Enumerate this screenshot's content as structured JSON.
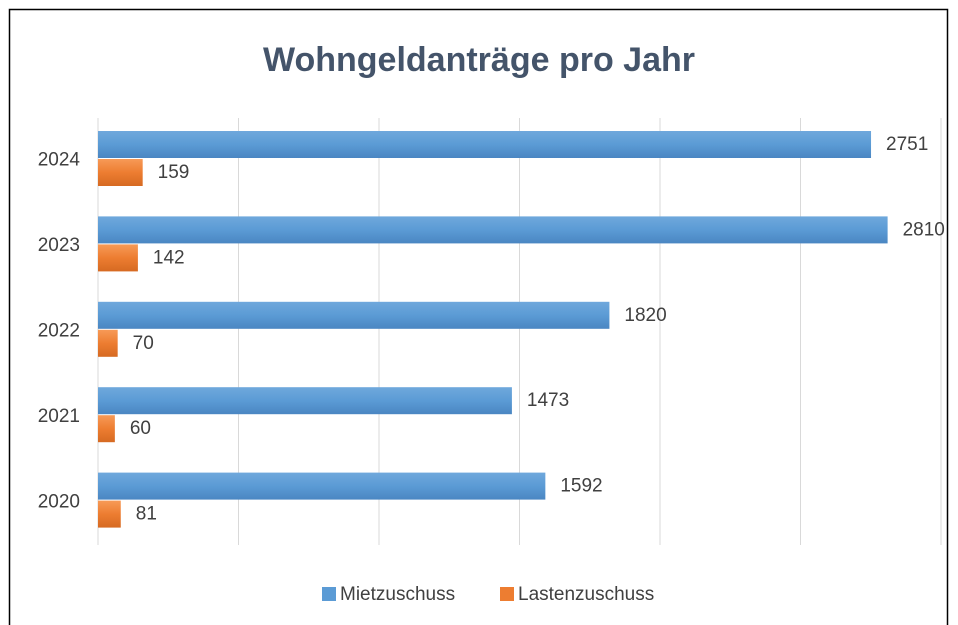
{
  "chart_data": {
    "type": "bar",
    "orientation": "horizontal",
    "title": "Wohngeldanträge pro Jahr",
    "categories": [
      "2024",
      "2023",
      "2022",
      "2021",
      "2020"
    ],
    "series": [
      {
        "name": "Mietzuschuss",
        "color": "#5b9bd5",
        "values": [
          2751,
          2810,
          1820,
          1473,
          1592
        ]
      },
      {
        "name": "Lastenzuschuss",
        "color": "#ed7d31",
        "values": [
          159,
          142,
          70,
          60,
          81
        ]
      }
    ],
    "xlim": [
      0,
      3000
    ],
    "xticks": [
      0,
      500,
      1000,
      1500,
      2000,
      2500,
      3000
    ],
    "grid": true,
    "legend": "bottom"
  }
}
